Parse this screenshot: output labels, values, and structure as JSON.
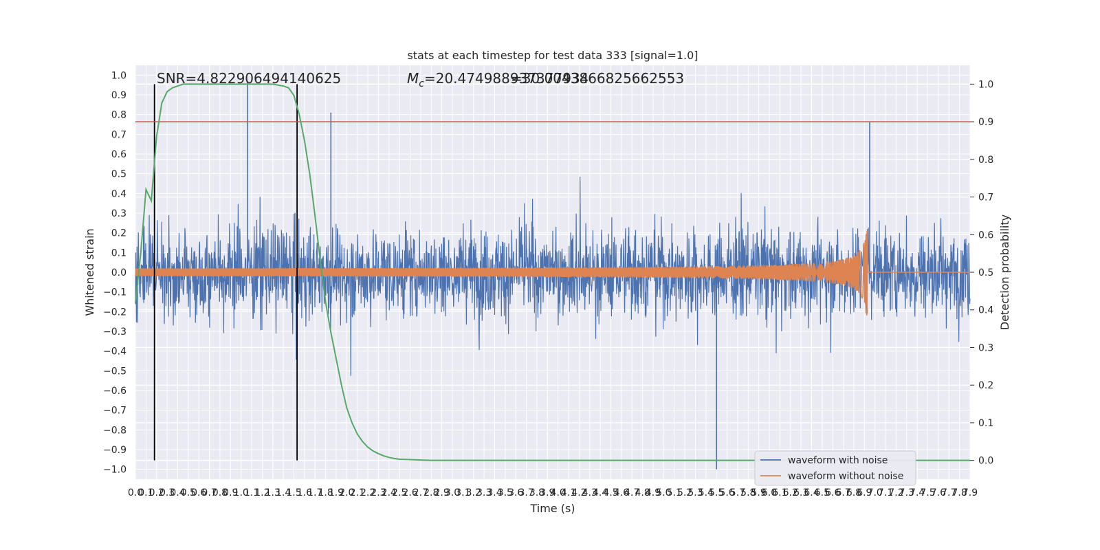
{
  "chart_data": {
    "type": "line",
    "title": "stats at each timestep for test data 333 [signal=1.0]",
    "xlabel": "Time (s)",
    "ylabel_left": "Whitened strain",
    "ylabel_right": "Detection probability",
    "xlim": [
      0,
      7.9
    ],
    "ylim_left": [
      -1.05,
      1.05
    ],
    "ylim_right": [
      -0.05,
      1.05
    ],
    "grid": true,
    "legend_position": "bottom-right",
    "x_ticks": [
      "0.0",
      "0.1",
      "0.2",
      "0.3",
      "0.4",
      "0.5",
      "0.6",
      "0.7",
      "0.8",
      "0.9",
      "1.0",
      "1.1",
      "1.2",
      "1.3",
      "1.4",
      "1.5",
      "1.6",
      "1.7",
      "1.8",
      "1.9",
      "2.0",
      "2.1",
      "2.2",
      "2.3",
      "2.4",
      "2.5",
      "2.6",
      "2.7",
      "2.8",
      "2.9",
      "3.0",
      "3.1",
      "3.2",
      "3.3",
      "3.4",
      "3.5",
      "3.6",
      "3.7",
      "3.8",
      "3.9",
      "4.0",
      "4.1",
      "4.2",
      "4.3",
      "4.4",
      "4.5",
      "4.6",
      "4.7",
      "4.8",
      "4.9",
      "5.0",
      "5.1",
      "5.2",
      "5.3",
      "5.4",
      "5.5",
      "5.6",
      "5.7",
      "5.8",
      "5.9",
      "6.0",
      "6.1",
      "6.2",
      "6.3",
      "6.4",
      "6.5",
      "6.6",
      "6.7",
      "6.8",
      "6.9",
      "7.0",
      "7.1",
      "7.2",
      "7.3",
      "7.4",
      "7.5",
      "7.6",
      "7.7",
      "7.8",
      "7.9"
    ],
    "y_left_ticks": [
      "1.0",
      "0.9",
      "0.8",
      "0.7",
      "0.6",
      "0.5",
      "0.4",
      "0.3",
      "0.2",
      "0.1",
      "0.0",
      "−0.1",
      "−0.2",
      "−0.3",
      "−0.4",
      "−0.5",
      "−0.6",
      "−0.7",
      "−0.8",
      "−0.9",
      "−1.0"
    ],
    "y_right_ticks": [
      "1.0",
      "0.9",
      "0.8",
      "0.7",
      "0.6",
      "0.5",
      "0.4",
      "0.3",
      "0.2",
      "0.1",
      "0.0"
    ],
    "annotations": {
      "snr": "SNR=4.822906494140625",
      "mc_symbol": "M",
      "mc_subscript": "c",
      "mc_value": "=20.474988937377934",
      "overlap": "=30.0043866825662553"
    },
    "series": [
      {
        "name": "waveform with noise",
        "axis": "left",
        "color": "#4c72b0",
        "envelope": {
          "core_abs": 0.25,
          "typical_abs": 0.45,
          "sample_spikes": [
            [
              1.06,
              0.97
            ],
            [
              1.85,
              0.81
            ],
            [
              5.5,
              -1.0
            ],
            [
              6.95,
              0.76
            ]
          ]
        }
      },
      {
        "name": "waveform without noise",
        "axis": "left",
        "color": "#dd8452",
        "chirp": {
          "peak_time": 6.93,
          "peak_amplitude": 0.22,
          "min_amplitude": -0.2
        }
      },
      {
        "name": "",
        "axis": "right",
        "color": "#55a868",
        "x": [
          0.0,
          0.05,
          0.1,
          0.15,
          0.2,
          0.25,
          0.3,
          0.35,
          0.4,
          0.45,
          0.5,
          0.6,
          0.7,
          0.8,
          0.9,
          1.0,
          1.1,
          1.2,
          1.3,
          1.4,
          1.45,
          1.5,
          1.55,
          1.6,
          1.65,
          1.7,
          1.75,
          1.8,
          1.85,
          1.9,
          1.95,
          2.0,
          2.05,
          2.1,
          2.15,
          2.2,
          2.25,
          2.3,
          2.35,
          2.4,
          2.45,
          2.5,
          2.6,
          2.7,
          2.8,
          3.0,
          3.5,
          4.0,
          4.5,
          5.0,
          5.5,
          6.0,
          6.5,
          7.0,
          7.5,
          7.9
        ],
        "values": [
          0.42,
          0.55,
          0.72,
          0.69,
          0.86,
          0.95,
          0.98,
          0.99,
          0.995,
          1.0,
          1.0,
          1.0,
          1.0,
          1.0,
          1.0,
          1.0,
          1.0,
          1.0,
          1.0,
          0.995,
          0.99,
          0.97,
          0.92,
          0.85,
          0.76,
          0.65,
          0.53,
          0.42,
          0.34,
          0.27,
          0.2,
          0.14,
          0.1,
          0.07,
          0.05,
          0.035,
          0.025,
          0.018,
          0.012,
          0.008,
          0.005,
          0.003,
          0.002,
          0.001,
          0.0,
          0.0,
          0.0,
          0.0,
          0.0,
          0.0,
          0.0,
          0.0,
          0.0,
          0.0,
          0.0,
          0.0
        ]
      }
    ],
    "vertical_markers": [
      0.18,
      1.53
    ],
    "threshold_right": 0.9,
    "threshold_color": "#c44e52",
    "marker_color": "#000000"
  }
}
